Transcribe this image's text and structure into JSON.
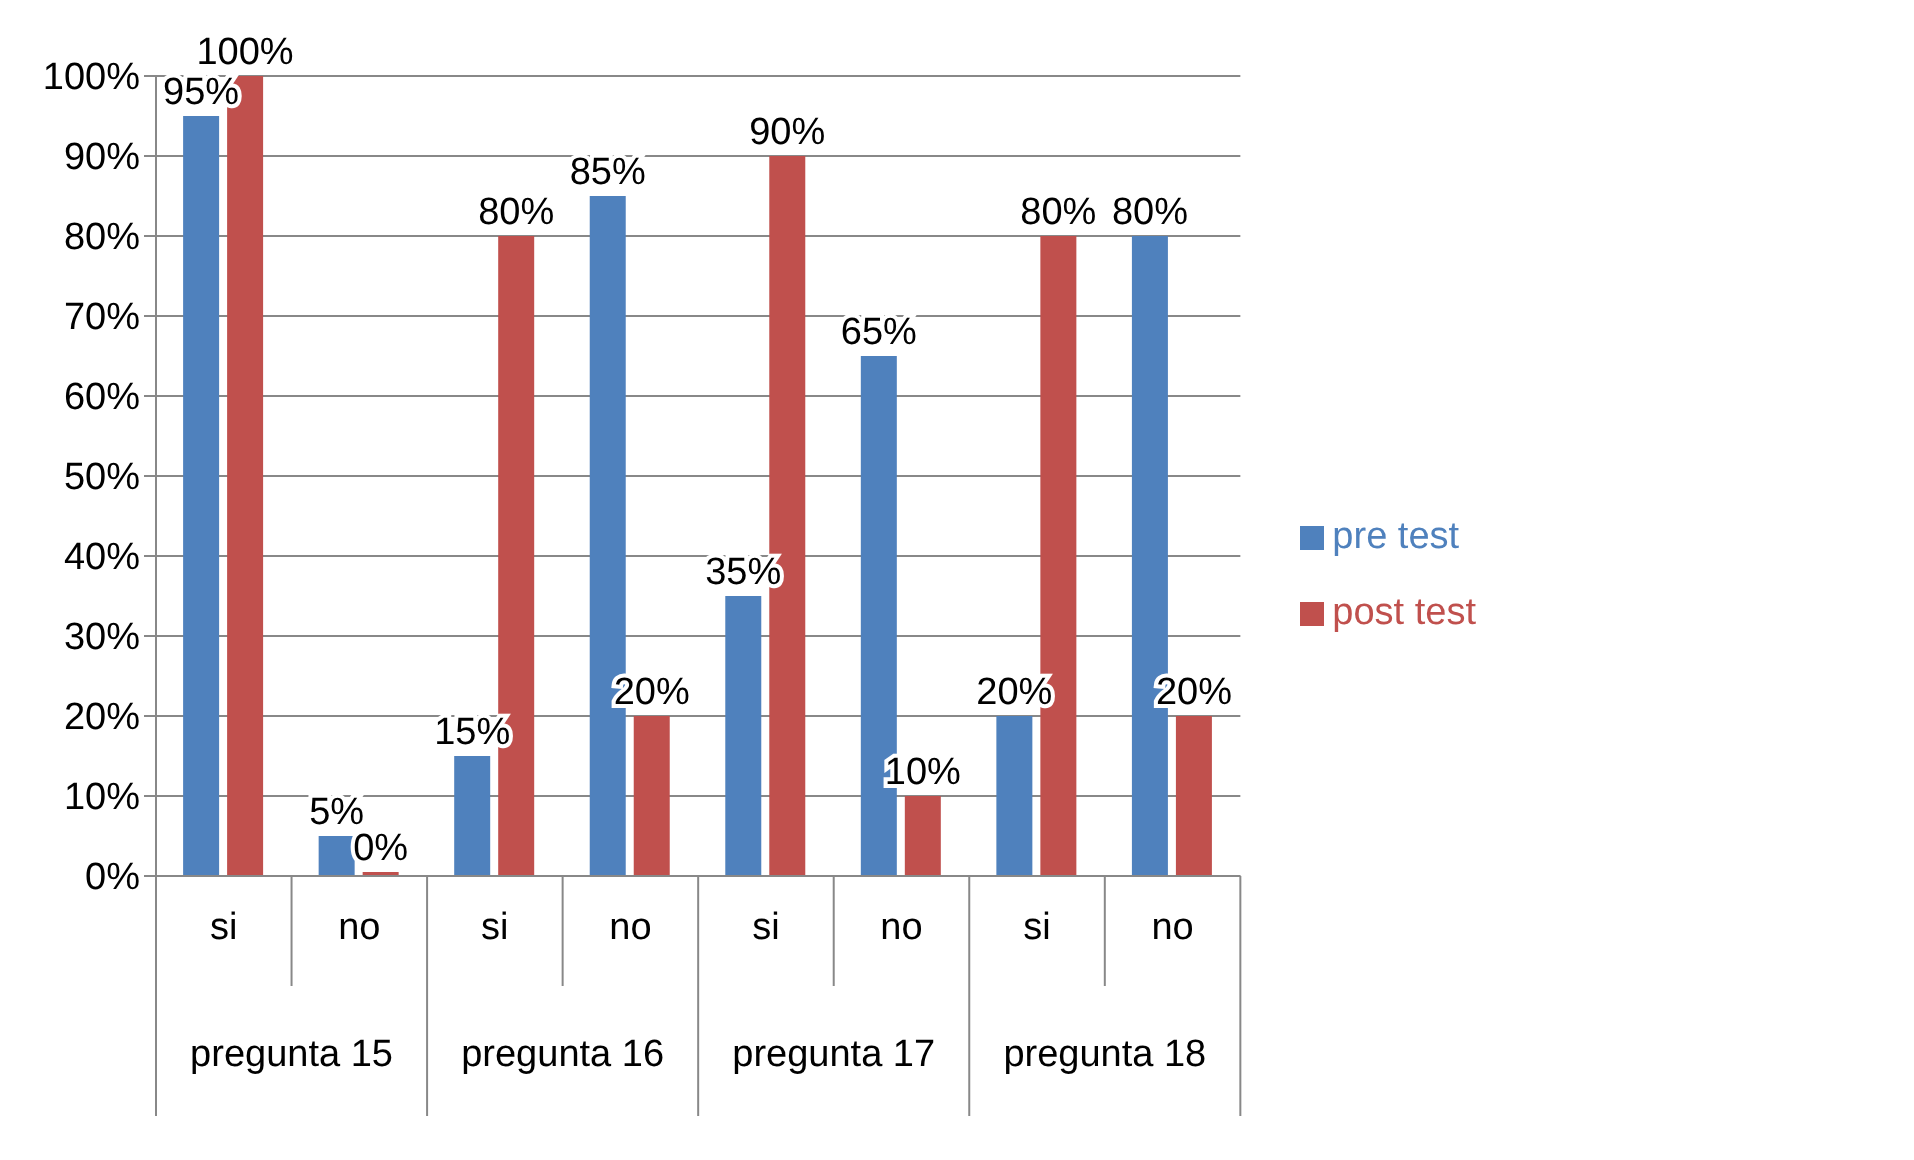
{
  "chart_data": {
    "type": "bar",
    "categories": [
      "si",
      "no",
      "si",
      "no",
      "si",
      "no",
      "si",
      "no"
    ],
    "series": [
      {
        "name": "pre test",
        "color": "#4f81bd",
        "values": [
          95,
          5,
          15,
          85,
          35,
          65,
          20,
          80
        ],
        "value_labels": [
          "95%",
          "5%",
          "15%",
          "85%",
          "35%",
          "65%",
          "20%",
          "80%"
        ]
      },
      {
        "name": "post test",
        "color": "#c0504d",
        "values": [
          100,
          0,
          80,
          20,
          90,
          10,
          80,
          20
        ],
        "value_labels": [
          "100%",
          "0%",
          "80%",
          "20%",
          "90%",
          "10%",
          "80%",
          "20%"
        ]
      }
    ],
    "ylim": [
      0,
      100
    ],
    "yticks": [
      {
        "value": 0,
        "label": "0%"
      },
      {
        "value": 10,
        "label": "10%"
      },
      {
        "value": 20,
        "label": "20%"
      },
      {
        "value": 30,
        "label": "30%"
      },
      {
        "value": 40,
        "label": "40%"
      },
      {
        "value": 50,
        "label": "50%"
      },
      {
        "value": 60,
        "label": "60%"
      },
      {
        "value": 70,
        "label": "70%"
      },
      {
        "value": 80,
        "label": "80%"
      },
      {
        "value": 90,
        "label": "90%"
      },
      {
        "value": 100,
        "label": "100%"
      }
    ],
    "grid": "y",
    "legend": "right",
    "annotations": [
      "pregunta 15",
      "pregunta 16",
      "pregunta 17",
      "pregunta 18"
    ]
  }
}
